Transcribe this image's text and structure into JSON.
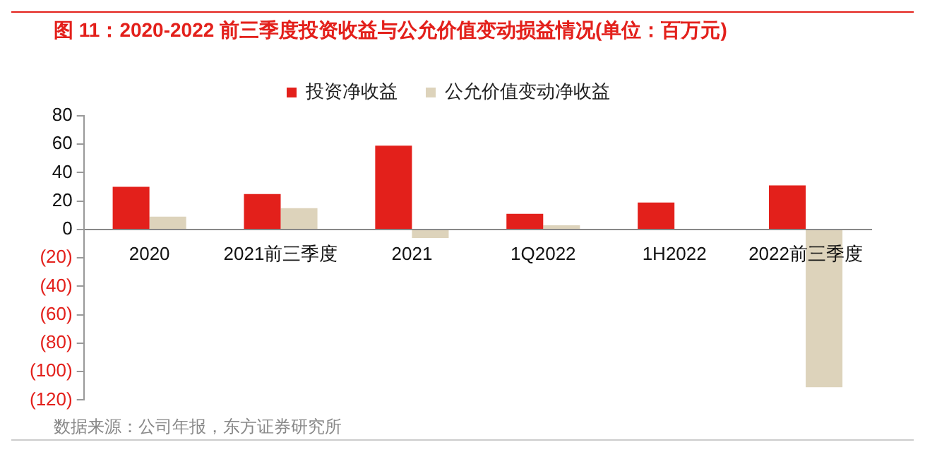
{
  "chart_data": {
    "type": "bar",
    "title": "图 11：2020-2022 前三季度投资收益与公允价值变动损益情况(单位：百万元)",
    "categories": [
      "2020",
      "2021前三季度",
      "2021",
      "1Q2022",
      "1H2022",
      "2022前三季度"
    ],
    "series": [
      {
        "name": "投资净收益",
        "color": "#e3201b",
        "values": [
          30,
          25,
          59,
          11,
          19,
          31
        ]
      },
      {
        "name": "公允价值变动净收益",
        "color": "#ddd3bb",
        "values": [
          9,
          15,
          -6,
          3,
          0,
          -111
        ]
      }
    ],
    "ylim": [
      -120,
      80
    ],
    "yticks": [
      {
        "value": -120,
        "label": "(120)"
      },
      {
        "value": -100,
        "label": "(100)"
      },
      {
        "value": -80,
        "label": "(80)"
      },
      {
        "value": -60,
        "label": "(60)"
      },
      {
        "value": -40,
        "label": "(40)"
      },
      {
        "value": -20,
        "label": "(20)"
      },
      0,
      20,
      40,
      60,
      80
    ],
    "grid": false,
    "legend": "top",
    "annotations": [
      "数据来源：公司年报，东方证券研究所"
    ]
  }
}
